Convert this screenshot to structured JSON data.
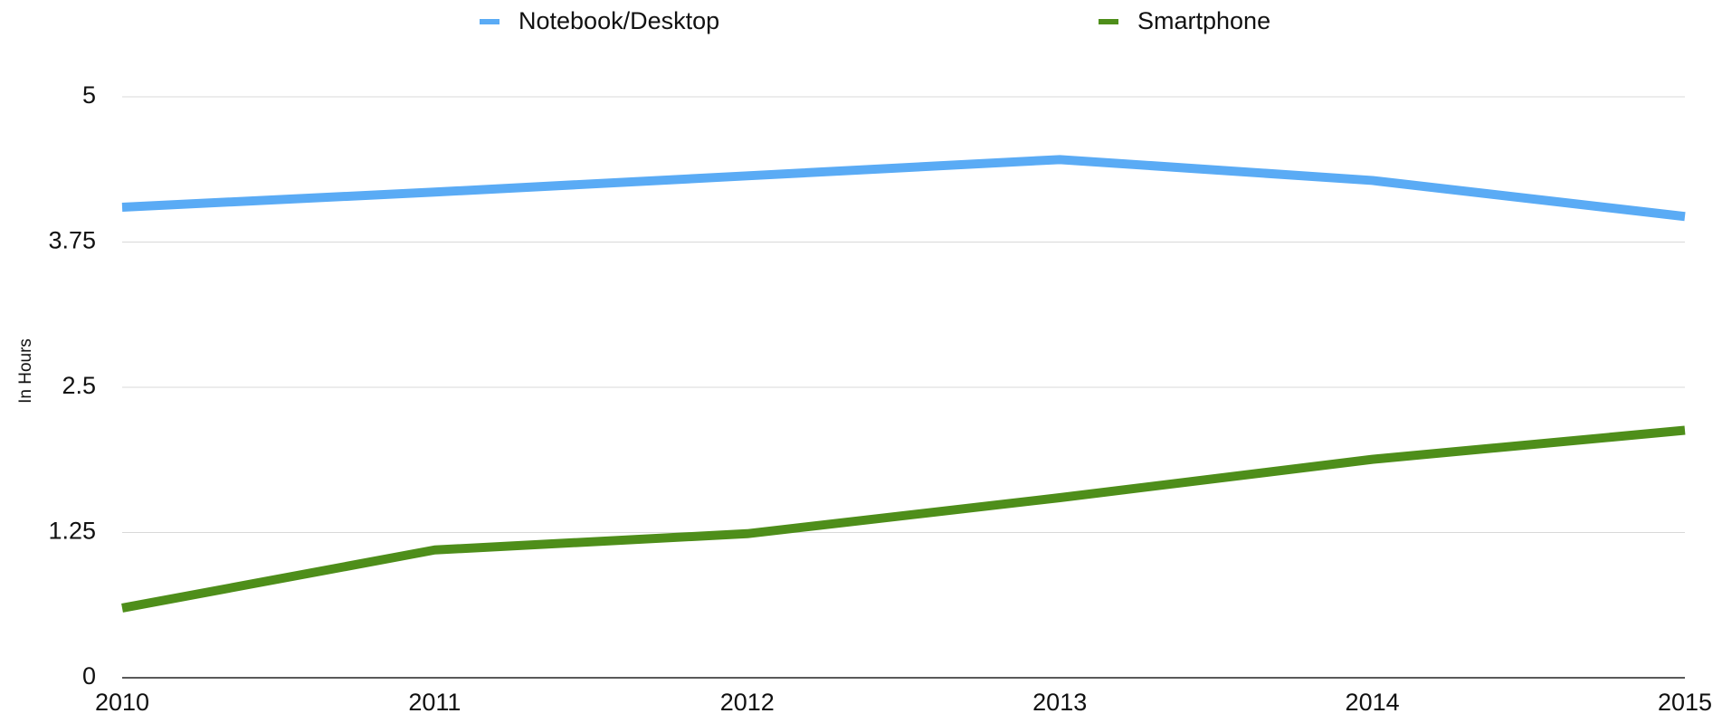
{
  "chart_data": {
    "type": "line",
    "y_axis_label": "In Hours",
    "x": [
      2010,
      2011,
      2012,
      2013,
      2014,
      2015
    ],
    "xlim": [
      2010,
      2015
    ],
    "xticks": [
      2010,
      2011,
      2012,
      2013,
      2014,
      2015
    ],
    "ylim": [
      0,
      5
    ],
    "yticks": [
      0,
      1.25,
      2.5,
      3.75,
      5
    ],
    "grid": true,
    "legend": "top",
    "series": [
      {
        "name": "Notebook/Desktop",
        "color": "#5aabf5",
        "values": [
          4.05,
          4.18,
          4.32,
          4.46,
          4.28,
          3.97
        ]
      },
      {
        "name": "Smartphone",
        "color": "#4e8e1a",
        "values": [
          0.6,
          1.1,
          1.24,
          1.55,
          1.88,
          2.13
        ]
      }
    ]
  }
}
